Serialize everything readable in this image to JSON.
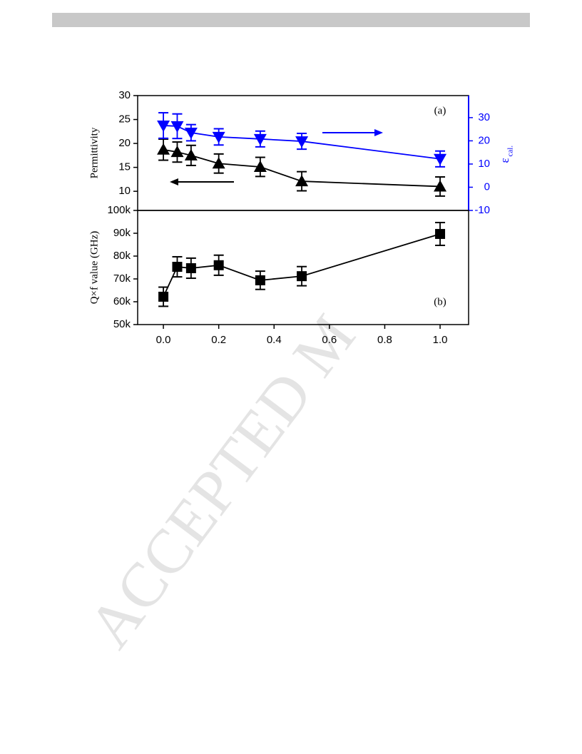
{
  "watermark": "ACCEPTED M",
  "chart_data": [
    {
      "type": "line",
      "panel_label": "(a)",
      "ylabel": "Permittivity",
      "y2label": "ε",
      "y2label_sub": "cal.",
      "y2color": "#0000ff",
      "x": [
        0,
        0.05,
        0.1,
        0.2,
        0.35,
        0.5,
        1.0
      ],
      "xlim": [
        -0.093,
        1.103
      ],
      "ylim": [
        6,
        30
      ],
      "yticks": [
        10,
        15,
        20,
        25,
        30
      ],
      "y2lim": [
        -10,
        39.5
      ],
      "y2ticks": [
        -10,
        0,
        10,
        20,
        30
      ],
      "series": [
        {
          "color": "#000000",
          "marker": "^",
          "values": [
            18.7,
            18.2,
            17.5,
            15.8,
            15.1,
            12.1,
            11.0
          ],
          "errors": [
            2.2,
            2.1,
            2.1,
            2.0,
            2.0,
            2.0,
            2.0
          ]
        },
        {
          "color": "#0000ff",
          "marker": "v",
          "axis": "y2",
          "values": [
            26.6,
            26.3,
            23.5,
            21.7,
            20.8,
            19.8,
            12.2
          ],
          "errors": [
            5.5,
            5.3,
            3.5,
            3.5,
            3.4,
            3.4,
            3.4
          ]
        }
      ]
    },
    {
      "type": "line",
      "panel_label": "(b)",
      "ylabel": "Q×f value (GHz)",
      "x": [
        0,
        0.05,
        0.1,
        0.2,
        0.35,
        0.5,
        1.0
      ],
      "xlim": [
        -0.093,
        1.103
      ],
      "xticks": [
        {
          "value": 0,
          "label": "0.0"
        },
        0.2,
        0.4,
        0.6,
        0.8,
        {
          "value": 1.0,
          "label": "1.0"
        }
      ],
      "ylim": [
        50000,
        100000
      ],
      "yticks": [
        {
          "value": 50000,
          "label": "50k"
        },
        {
          "value": 60000,
          "label": "60k"
        },
        {
          "value": 70000,
          "label": "70k"
        },
        {
          "value": 80000,
          "label": "80k"
        },
        {
          "value": 90000,
          "label": "90k"
        },
        {
          "value": 100000,
          "label": "100k"
        }
      ],
      "series": [
        {
          "color": "#000000",
          "marker": "s",
          "values": [
            62200,
            75300,
            74700,
            76000,
            69400,
            71200,
            89700
          ],
          "errors": [
            4200,
            4400,
            4400,
            4400,
            4000,
            4200,
            5000
          ]
        }
      ]
    }
  ]
}
